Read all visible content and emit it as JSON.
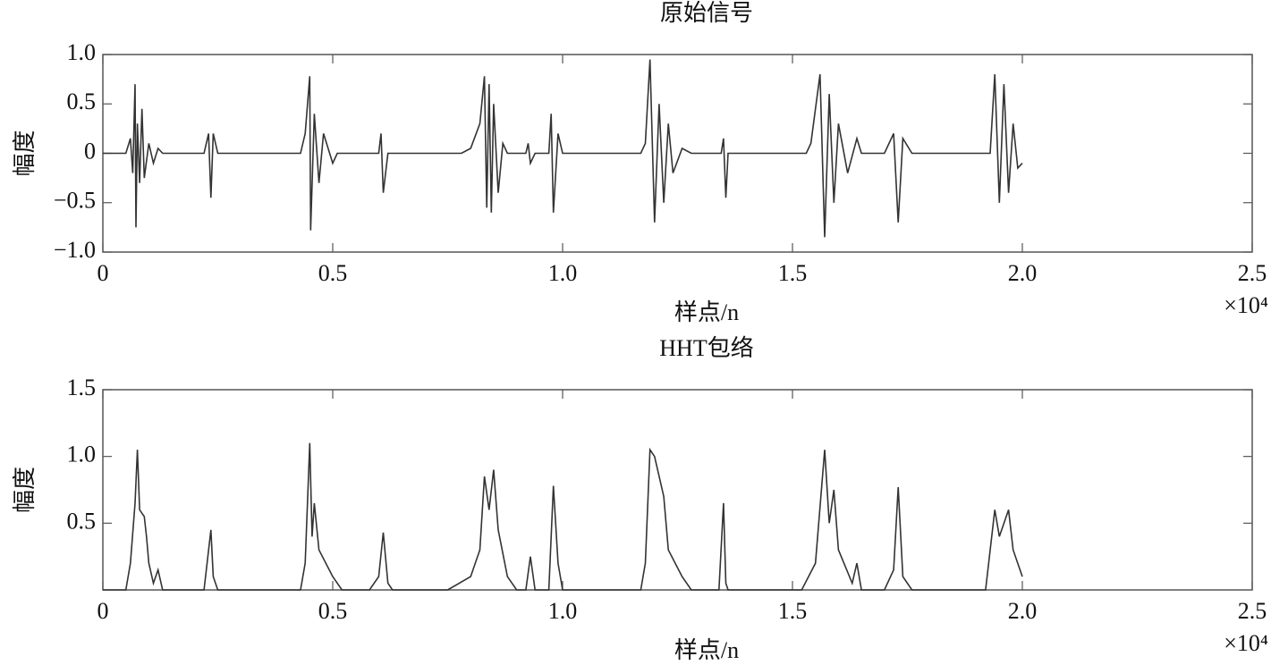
{
  "chart_data": [
    {
      "type": "line",
      "title": "原始信号",
      "x_label": "样点/n",
      "y_label": "幅度",
      "x_multiplier": "×10⁴",
      "xlim": [
        0,
        2.5
      ],
      "xticks": [
        0,
        0.5,
        {
          "value": 1,
          "label": "1.0"
        },
        1.5,
        {
          "value": 2,
          "label": "2.0"
        },
        2.5
      ],
      "ylim": [
        -1,
        1
      ],
      "yticks": [
        {
          "value": 1,
          "label": "1.0"
        },
        0.5,
        0,
        {
          "value": -0.5,
          "label": "−0.5"
        },
        {
          "value": -1,
          "label": "−1.0"
        }
      ],
      "x": [
        0,
        0.05,
        0.06,
        0.065,
        0.07,
        0.072,
        0.075,
        0.08,
        0.085,
        0.09,
        0.1,
        0.11,
        0.12,
        0.13,
        0.22,
        0.23,
        0.235,
        0.24,
        0.25,
        0.43,
        0.44,
        0.45,
        0.452,
        0.46,
        0.47,
        0.48,
        0.5,
        0.51,
        0.6,
        0.605,
        0.61,
        0.62,
        0.78,
        0.8,
        0.82,
        0.83,
        0.835,
        0.84,
        0.845,
        0.85,
        0.86,
        0.87,
        0.88,
        0.92,
        0.925,
        0.93,
        0.94,
        0.97,
        0.975,
        0.98,
        0.99,
        1.0,
        1.17,
        1.18,
        1.19,
        1.2,
        1.21,
        1.22,
        1.23,
        1.24,
        1.26,
        1.28,
        1.345,
        1.35,
        1.355,
        1.36,
        1.53,
        1.54,
        1.56,
        1.57,
        1.58,
        1.59,
        1.6,
        1.62,
        1.64,
        1.65,
        1.7,
        1.72,
        1.73,
        1.74,
        1.76,
        1.93,
        1.94,
        1.95,
        1.96,
        1.97,
        1.98,
        1.99,
        2.0
      ],
      "series": [
        {
          "color": "#333333",
          "values": [
            0,
            0,
            0.15,
            -0.2,
            0.7,
            -0.75,
            0.3,
            -0.3,
            0.45,
            -0.25,
            0.1,
            -0.1,
            0.05,
            0,
            0,
            0.2,
            -0.45,
            0.2,
            0,
            0,
            0.2,
            0.78,
            -0.78,
            0.4,
            -0.3,
            0.2,
            -0.1,
            0,
            0,
            0.2,
            -0.4,
            0,
            0,
            0.05,
            0.3,
            0.78,
            -0.55,
            0.7,
            -0.6,
            0.5,
            -0.4,
            0.1,
            0,
            0,
            0.1,
            -0.1,
            0,
            0,
            0.4,
            -0.6,
            0.2,
            0,
            0,
            0.1,
            0.95,
            -0.7,
            0.5,
            -0.5,
            0.3,
            -0.2,
            0.05,
            0,
            0,
            0.15,
            -0.45,
            0,
            0,
            0.1,
            0.8,
            -0.85,
            0.6,
            -0.5,
            0.3,
            -0.2,
            0.15,
            0,
            0,
            0.2,
            -0.7,
            0.15,
            0,
            0,
            0.8,
            -0.5,
            0.7,
            -0.4,
            0.3,
            -0.15,
            -0.1
          ]
        }
      ]
    },
    {
      "type": "line",
      "title": "HHT包络",
      "x_label": "样点/n",
      "y_label": "幅度",
      "x_multiplier": "×10⁴",
      "xlim": [
        0,
        2.5
      ],
      "xticks": [
        0,
        0.5,
        {
          "value": 1,
          "label": "1.0"
        },
        1.5,
        {
          "value": 2,
          "label": "2.0"
        },
        2.5
      ],
      "ylim": [
        0,
        1.5
      ],
      "yticks": [
        1.5,
        {
          "value": 1,
          "label": "1.0"
        },
        0.5
      ],
      "x": [
        0,
        0.05,
        0.06,
        0.07,
        0.075,
        0.08,
        0.09,
        0.095,
        0.1,
        0.11,
        0.12,
        0.13,
        0.22,
        0.235,
        0.24,
        0.25,
        0.43,
        0.44,
        0.45,
        0.455,
        0.46,
        0.47,
        0.5,
        0.52,
        0.58,
        0.6,
        0.61,
        0.62,
        0.63,
        0.75,
        0.8,
        0.82,
        0.83,
        0.84,
        0.85,
        0.86,
        0.88,
        0.9,
        0.92,
        0.93,
        0.94,
        0.97,
        0.98,
        0.99,
        1.0,
        1.17,
        1.18,
        1.19,
        1.2,
        1.22,
        1.23,
        1.26,
        1.28,
        1.34,
        1.35,
        1.355,
        1.36,
        1.52,
        1.55,
        1.57,
        1.58,
        1.59,
        1.6,
        1.63,
        1.64,
        1.65,
        1.7,
        1.72,
        1.73,
        1.74,
        1.76,
        1.92,
        1.94,
        1.95,
        1.97,
        1.98,
        2.0
      ],
      "series": [
        {
          "color": "#333333",
          "values": [
            0,
            0,
            0.2,
            0.65,
            1.05,
            0.6,
            0.55,
            0.4,
            0.2,
            0.05,
            0.15,
            0,
            0,
            0.45,
            0.1,
            0,
            0,
            0.2,
            1.1,
            0.4,
            0.65,
            0.3,
            0.1,
            0,
            0,
            0.1,
            0.43,
            0.05,
            0,
            0,
            0.1,
            0.3,
            0.85,
            0.6,
            0.9,
            0.45,
            0.1,
            0,
            0,
            0.25,
            0,
            0,
            0.78,
            0.2,
            0,
            0,
            0.2,
            1.05,
            1.0,
            0.7,
            0.3,
            0.1,
            0,
            0,
            0.65,
            0.05,
            0,
            0,
            0.2,
            1.05,
            0.5,
            0.75,
            0.3,
            0.05,
            0.2,
            0,
            0,
            0.15,
            0.77,
            0.1,
            0,
            0,
            0.6,
            0.4,
            0.6,
            0.3,
            0.1
          ]
        }
      ]
    }
  ]
}
